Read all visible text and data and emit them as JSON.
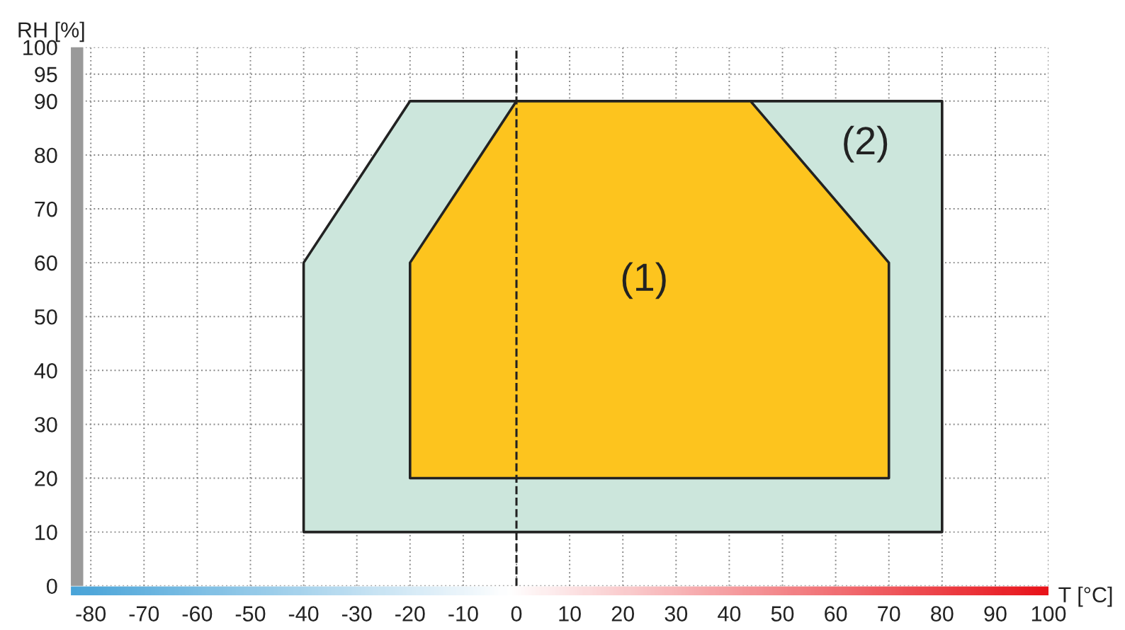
{
  "chart_data": {
    "type": "area",
    "xlabel": "T [°C]",
    "ylabel": "RH [%]",
    "series": [
      {
        "name": "(2)",
        "color": "#cce6dc",
        "x": [
          -40,
          -20,
          80,
          80,
          -40
        ],
        "values": [
          60,
          90,
          90,
          10,
          10
        ]
      },
      {
        "name": "(1)",
        "color": "#fdc41e",
        "x": [
          -20,
          -20,
          0,
          44,
          70,
          70
        ],
        "values": [
          20,
          60,
          90,
          90,
          60,
          20
        ]
      }
    ],
    "xlim": [
      -81,
      100
    ],
    "ylim": [
      0,
      100
    ],
    "xticks": [
      -80,
      -70,
      -60,
      -50,
      -40,
      -30,
      -20,
      -10,
      0,
      10,
      20,
      30,
      40,
      50,
      60,
      70,
      80,
      90,
      100
    ],
    "yticks": [
      0,
      10,
      20,
      30,
      40,
      50,
      60,
      70,
      80,
      90,
      95,
      100
    ],
    "ref_lines": [
      {
        "axis": "x",
        "value": 0,
        "line_style": "dashed",
        "color": "#222222"
      }
    ],
    "grid": true
  }
}
